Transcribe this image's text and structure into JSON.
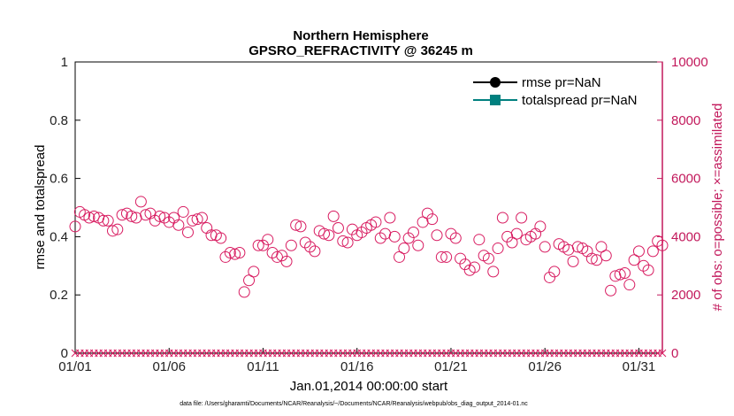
{
  "chart_data": {
    "type": "scatter",
    "title": "Northern Hemisphere",
    "subtitle": "GPSRO_REFRACTIVITY @ 36245 m",
    "xlabel": "Jan.01,2014 00:00:00 start",
    "ylabel": "rmse and totalspread",
    "ylabel_right": "# of obs: o=possible; ×=assimilated",
    "xlim": [
      1,
      32.25
    ],
    "ylim": [
      0,
      1
    ],
    "ylim_right": [
      0,
      10000
    ],
    "x_ticks": [
      1,
      6,
      11,
      16,
      21,
      26,
      31
    ],
    "x_tick_labels": [
      "01/01",
      "01/06",
      "01/11",
      "01/16",
      "01/21",
      "01/26",
      "01/31"
    ],
    "y_ticks": [
      0,
      0.2,
      0.4,
      0.6,
      0.8,
      1
    ],
    "y_tick_labels": [
      "0",
      "0.2",
      "0.4",
      "0.6",
      "0.8",
      "1"
    ],
    "y_right_ticks": [
      0,
      2000,
      4000,
      6000,
      8000,
      10000
    ],
    "y_right_tick_labels": [
      "0",
      "2000",
      "4000",
      "6000",
      "8000",
      "10000"
    ],
    "legend": {
      "position": "top-right",
      "entries": [
        {
          "label": "rmse pr=NaN",
          "color": "#000000",
          "marker": "circle"
        },
        {
          "label": "totalspread pr=NaN",
          "color": "#00807f",
          "marker": "square"
        }
      ]
    },
    "series": [
      {
        "name": "possible",
        "axis": "right",
        "marker": "open-circle",
        "color": "#d81b60",
        "x_start": 1,
        "x_step": 0.25,
        "values": [
          4350,
          4850,
          4750,
          4650,
          4700,
          4650,
          4550,
          4550,
          4200,
          4250,
          4750,
          4800,
          4700,
          4650,
          5200,
          4750,
          4800,
          4550,
          4700,
          4650,
          4500,
          4650,
          4400,
          4850,
          4150,
          4550,
          4600,
          4650,
          4300,
          4050,
          4050,
          3950,
          3300,
          3450,
          3400,
          3450,
          2100,
          2500,
          2800,
          3700,
          3700,
          3900,
          3450,
          3300,
          3350,
          3150,
          3700,
          4400,
          4350,
          3800,
          3650,
          3500,
          4200,
          4100,
          4050,
          4700,
          4300,
          3850,
          3800,
          4250,
          4050,
          4150,
          4300,
          4400,
          4500,
          3950,
          4100,
          4650,
          4000,
          3300,
          3600,
          3950,
          4150,
          3700,
          4500,
          4800,
          4600,
          4050,
          3300,
          3300,
          4100,
          3950,
          3250,
          3050,
          2850,
          2950,
          3900,
          3350,
          3250,
          2800,
          3600,
          4650,
          4000,
          3800,
          4100,
          4650,
          3900,
          4000,
          4100,
          4350,
          3650,
          2600,
          2800,
          3750,
          3650,
          3550,
          3150,
          3650,
          3600,
          3500,
          3250,
          3200,
          3650,
          3350,
          2150,
          2650,
          2700,
          2750,
          2350,
          3200,
          3500,
          3000,
          2850,
          3500,
          3850,
          3700
        ]
      },
      {
        "name": "assimilated",
        "axis": "right",
        "marker": "x",
        "color": "#d81b60",
        "x_start": 1,
        "x_step": 0.25,
        "constant_value": 0,
        "count": 126
      }
    ]
  },
  "footer_text": "data file: /Users/gharamti/Documents/NCAR/Reanalysis/~/Documents/NCAR/Reanalysis/webpub/obs_diag_output_2014-01.nc"
}
